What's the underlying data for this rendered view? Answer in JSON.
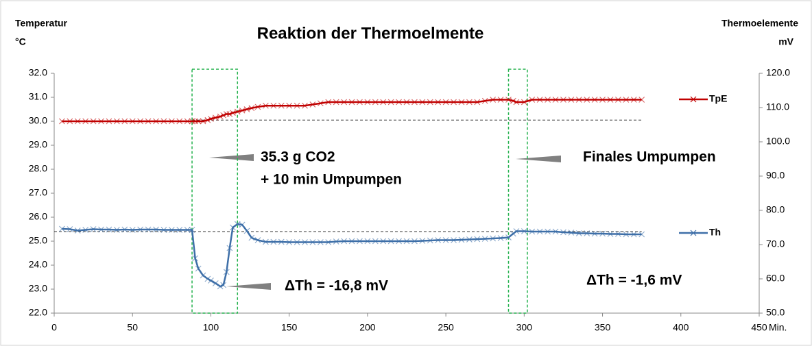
{
  "chart_data": {
    "type": "line",
    "title": "Reaktion der Thermoelmente",
    "y_label": "Temperatur",
    "y_unit": "°C",
    "y2_label": "Thermoelemente",
    "y2_unit": "mV",
    "x_unit": "Min.",
    "x": [
      5,
      10,
      15,
      20,
      25,
      30,
      35,
      40,
      45,
      50,
      55,
      60,
      65,
      70,
      75,
      80,
      85,
      88,
      90,
      92,
      95,
      98,
      100,
      103,
      106,
      108,
      110,
      112,
      114,
      117,
      120,
      123,
      126,
      130,
      135,
      140,
      145,
      150,
      155,
      160,
      165,
      170,
      175,
      180,
      185,
      190,
      195,
      200,
      205,
      210,
      215,
      220,
      225,
      230,
      235,
      240,
      245,
      250,
      255,
      260,
      265,
      270,
      275,
      280,
      285,
      290,
      293,
      295,
      300,
      305,
      310,
      315,
      320,
      325,
      330,
      335,
      340,
      345,
      350,
      355,
      360,
      365,
      370,
      375
    ],
    "series": [
      {
        "name": "TpE",
        "color": "#c00000",
        "axis": "y",
        "values": [
          30,
          30,
          30,
          30,
          30,
          30,
          30,
          30,
          30,
          30,
          30,
          30,
          30,
          30,
          30,
          30,
          30,
          30,
          30,
          30,
          30,
          30.05,
          30.1,
          30.15,
          30.2,
          30.25,
          30.3,
          30.3,
          30.35,
          30.4,
          30.45,
          30.5,
          30.55,
          30.6,
          30.65,
          30.65,
          30.65,
          30.65,
          30.65,
          30.65,
          30.7,
          30.75,
          30.8,
          30.8,
          30.8,
          30.8,
          30.8,
          30.8,
          30.8,
          30.8,
          30.8,
          30.8,
          30.8,
          30.8,
          30.8,
          30.8,
          30.8,
          30.8,
          30.8,
          30.8,
          30.8,
          30.8,
          30.85,
          30.9,
          30.9,
          30.9,
          30.85,
          30.8,
          30.8,
          30.9,
          30.9,
          30.9,
          30.9,
          30.9,
          30.9,
          30.9,
          30.9,
          30.9,
          30.9,
          30.9,
          30.9,
          30.9,
          30.9,
          30.9
        ]
      },
      {
        "name": "Th",
        "color": "#3e6fa8",
        "axis": "y2",
        "values": [
          74.6,
          74.5,
          74.1,
          74.3,
          74.5,
          74.4,
          74.4,
          74.3,
          74.4,
          74.3,
          74.4,
          74.4,
          74.4,
          74.3,
          74.3,
          74.3,
          74.3,
          74.3,
          66,
          63,
          61,
          60,
          59.5,
          58.7,
          57.8,
          58.2,
          62,
          69,
          75,
          76,
          75.8,
          74,
          72,
          71.3,
          70.8,
          70.8,
          70.8,
          70.7,
          70.7,
          70.7,
          70.7,
          70.7,
          70.7,
          70.9,
          71,
          71,
          71,
          71,
          71,
          71,
          71,
          71,
          71,
          71,
          71.1,
          71.2,
          71.3,
          71.3,
          71.3,
          71.4,
          71.5,
          71.6,
          71.7,
          71.8,
          71.9,
          72.1,
          73.2,
          73.9,
          73.9,
          73.8,
          73.8,
          73.8,
          73.8,
          73.6,
          73.5,
          73.3,
          73.3,
          73.2,
          73.2,
          73.1,
          73.1,
          73,
          73,
          73
        ]
      }
    ],
    "reference_lines": [
      {
        "axis": "y",
        "value": 30.05,
        "x": [
          88,
          375
        ]
      },
      {
        "axis": "y",
        "value": 25.4,
        "x": [
          0,
          375
        ]
      }
    ],
    "highlight_ranges": [
      [
        88,
        117
      ],
      [
        290,
        302
      ]
    ],
    "annotations": [
      "35.3 g CO2",
      "+ 10 min Umpumpen",
      "Finales Umpumpen",
      "ΔTh = -16,8 mV",
      "ΔTh = -1,6 mV"
    ],
    "xlim": [
      0,
      450
    ],
    "xticks": [
      0,
      50,
      100,
      150,
      200,
      250,
      300,
      350,
      400,
      450
    ],
    "ylim": [
      22,
      32
    ],
    "yticks": [
      {
        "value": 22,
        "label": "22.0"
      },
      {
        "value": 23,
        "label": "23.0"
      },
      {
        "value": 24,
        "label": "24.0"
      },
      {
        "value": 25,
        "label": "25.0"
      },
      {
        "value": 26,
        "label": "26.0"
      },
      {
        "value": 27,
        "label": "27.0"
      },
      {
        "value": 28,
        "label": "28.0"
      },
      {
        "value": 29,
        "label": "29.0"
      },
      {
        "value": 30,
        "label": "30.0"
      },
      {
        "value": 31,
        "label": "31.0"
      },
      {
        "value": 32,
        "label": "32.0"
      }
    ],
    "y2lim": [
      50,
      120
    ],
    "y2ticks": [
      {
        "value": 50,
        "label": "50.0"
      },
      {
        "value": 60,
        "label": "60.0"
      },
      {
        "value": 70,
        "label": "70.0"
      },
      {
        "value": 80,
        "label": "80.0"
      },
      {
        "value": 90,
        "label": "90.0"
      },
      {
        "value": 100,
        "label": "100.0"
      },
      {
        "value": 110,
        "label": "110.0"
      },
      {
        "value": 120,
        "label": "120.0"
      }
    ]
  }
}
